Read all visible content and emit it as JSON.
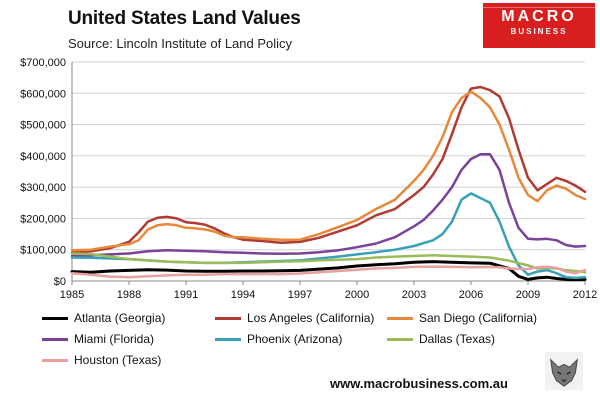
{
  "header": {
    "title": "United States Land Values",
    "subtitle": "Source: Lincoln Institute of Land Policy"
  },
  "logo": {
    "top": "MACRO",
    "bottom": "BUSINESS"
  },
  "footer": {
    "url": "www.macrobusiness.com.au"
  },
  "chart_data": {
    "type": "line",
    "title": "United States Land Values",
    "subtitle": "Source: Lincoln Institute of Land Policy",
    "xlabel": "",
    "ylabel": "",
    "xlim": [
      1985,
      2012
    ],
    "ylim": [
      0,
      700000
    ],
    "x_ticks": [
      1985,
      1988,
      1991,
      1994,
      1997,
      2000,
      2003,
      2006,
      2009,
      2012
    ],
    "y_ticks": [
      0,
      100000,
      200000,
      300000,
      400000,
      500000,
      600000,
      700000
    ],
    "y_tick_labels": [
      "$0",
      "$100,000",
      "$200,000",
      "$300,000",
      "$400,000",
      "$500,000",
      "$600,000",
      "$700,000"
    ],
    "grid": "horizontal",
    "legend_position": "bottom",
    "series": [
      {
        "name": "Atlanta (Georgia)",
        "color": "#000000",
        "width": 3,
        "points": [
          [
            1985,
            30000
          ],
          [
            1986,
            28000
          ],
          [
            1987,
            32000
          ],
          [
            1988,
            34000
          ],
          [
            1989,
            36000
          ],
          [
            1990,
            35000
          ],
          [
            1991,
            32000
          ],
          [
            1992,
            31000
          ],
          [
            1993,
            31000
          ],
          [
            1994,
            32000
          ],
          [
            1995,
            32000
          ],
          [
            1996,
            33000
          ],
          [
            1997,
            34000
          ],
          [
            1998,
            38000
          ],
          [
            1999,
            42000
          ],
          [
            2000,
            48000
          ],
          [
            2001,
            52000
          ],
          [
            2002,
            55000
          ],
          [
            2003,
            60000
          ],
          [
            2004,
            62000
          ],
          [
            2005,
            60000
          ],
          [
            2006,
            58000
          ],
          [
            2007,
            57000
          ],
          [
            2008,
            40000
          ],
          [
            2008.5,
            15000
          ],
          [
            2009,
            5000
          ],
          [
            2009.5,
            10000
          ],
          [
            2010,
            12000
          ],
          [
            2010.5,
            8000
          ],
          [
            2011,
            5000
          ],
          [
            2011.5,
            4000
          ],
          [
            2012,
            5000
          ]
        ]
      },
      {
        "name": "Los Angeles (California)",
        "color": "#b03a34",
        "width": 2.5,
        "points": [
          [
            1985,
            90000
          ],
          [
            1986,
            95000
          ],
          [
            1987,
            105000
          ],
          [
            1988,
            125000
          ],
          [
            1988.5,
            155000
          ],
          [
            1989,
            190000
          ],
          [
            1989.5,
            202000
          ],
          [
            1990,
            205000
          ],
          [
            1990.5,
            200000
          ],
          [
            1991,
            188000
          ],
          [
            1991.5,
            185000
          ],
          [
            1992,
            180000
          ],
          [
            1992.5,
            168000
          ],
          [
            1993,
            152000
          ],
          [
            1993.5,
            140000
          ],
          [
            1994,
            132000
          ],
          [
            1995,
            128000
          ],
          [
            1996,
            122000
          ],
          [
            1997,
            125000
          ],
          [
            1998,
            138000
          ],
          [
            1999,
            158000
          ],
          [
            2000,
            178000
          ],
          [
            2001,
            210000
          ],
          [
            2002,
            230000
          ],
          [
            2003,
            275000
          ],
          [
            2003.5,
            300000
          ],
          [
            2004,
            340000
          ],
          [
            2004.5,
            390000
          ],
          [
            2005,
            470000
          ],
          [
            2005.5,
            555000
          ],
          [
            2006,
            615000
          ],
          [
            2006.5,
            620000
          ],
          [
            2007,
            610000
          ],
          [
            2007.5,
            590000
          ],
          [
            2008,
            520000
          ],
          [
            2008.5,
            420000
          ],
          [
            2009,
            330000
          ],
          [
            2009.5,
            290000
          ],
          [
            2010,
            310000
          ],
          [
            2010.5,
            330000
          ],
          [
            2011,
            320000
          ],
          [
            2011.5,
            305000
          ],
          [
            2012,
            285000
          ]
        ]
      },
      {
        "name": "San Diego (California)",
        "color": "#e6893b",
        "width": 2.5,
        "points": [
          [
            1985,
            98000
          ],
          [
            1986,
            100000
          ],
          [
            1987,
            110000
          ],
          [
            1988,
            118000
          ],
          [
            1988.5,
            130000
          ],
          [
            1989,
            165000
          ],
          [
            1989.5,
            178000
          ],
          [
            1990,
            182000
          ],
          [
            1990.5,
            178000
          ],
          [
            1991,
            170000
          ],
          [
            1991.5,
            168000
          ],
          [
            1992,
            165000
          ],
          [
            1992.5,
            158000
          ],
          [
            1993,
            145000
          ],
          [
            1993.5,
            140000
          ],
          [
            1994,
            140000
          ],
          [
            1995,
            135000
          ],
          [
            1996,
            132000
          ],
          [
            1997,
            132000
          ],
          [
            1998,
            150000
          ],
          [
            1999,
            172000
          ],
          [
            2000,
            195000
          ],
          [
            2001,
            230000
          ],
          [
            2002,
            260000
          ],
          [
            2003,
            320000
          ],
          [
            2003.5,
            355000
          ],
          [
            2004,
            400000
          ],
          [
            2004.5,
            460000
          ],
          [
            2005,
            540000
          ],
          [
            2005.5,
            585000
          ],
          [
            2006,
            605000
          ],
          [
            2006.5,
            585000
          ],
          [
            2007,
            555000
          ],
          [
            2007.5,
            500000
          ],
          [
            2008,
            420000
          ],
          [
            2008.5,
            330000
          ],
          [
            2009,
            275000
          ],
          [
            2009.5,
            255000
          ],
          [
            2010,
            290000
          ],
          [
            2010.5,
            305000
          ],
          [
            2011,
            295000
          ],
          [
            2011.5,
            275000
          ],
          [
            2012,
            262000
          ]
        ]
      },
      {
        "name": "Miami (Florida)",
        "color": "#7b4397",
        "width": 2.5,
        "points": [
          [
            1985,
            80000
          ],
          [
            1986,
            82000
          ],
          [
            1987,
            85000
          ],
          [
            1988,
            88000
          ],
          [
            1989,
            95000
          ],
          [
            1990,
            98000
          ],
          [
            1991,
            97000
          ],
          [
            1992,
            95000
          ],
          [
            1993,
            92000
          ],
          [
            1994,
            90000
          ],
          [
            1995,
            88000
          ],
          [
            1996,
            87000
          ],
          [
            1997,
            88000
          ],
          [
            1998,
            92000
          ],
          [
            1999,
            98000
          ],
          [
            2000,
            108000
          ],
          [
            2001,
            120000
          ],
          [
            2002,
            140000
          ],
          [
            2003,
            175000
          ],
          [
            2003.5,
            195000
          ],
          [
            2004,
            225000
          ],
          [
            2004.5,
            260000
          ],
          [
            2005,
            300000
          ],
          [
            2005.5,
            355000
          ],
          [
            2006,
            390000
          ],
          [
            2006.5,
            405000
          ],
          [
            2007,
            405000
          ],
          [
            2007.5,
            355000
          ],
          [
            2008,
            250000
          ],
          [
            2008.5,
            170000
          ],
          [
            2009,
            135000
          ],
          [
            2009.5,
            133000
          ],
          [
            2010,
            135000
          ],
          [
            2010.5,
            130000
          ],
          [
            2011,
            115000
          ],
          [
            2011.5,
            110000
          ],
          [
            2012,
            112000
          ]
        ]
      },
      {
        "name": "Phoenix (Arizona)",
        "color": "#3aa0b7",
        "width": 2.5,
        "points": [
          [
            1985,
            75000
          ],
          [
            1986,
            74000
          ],
          [
            1987,
            72000
          ],
          [
            1988,
            70000
          ],
          [
            1989,
            66000
          ],
          [
            1990,
            62000
          ],
          [
            1991,
            60000
          ],
          [
            1992,
            58000
          ],
          [
            1993,
            58000
          ],
          [
            1994,
            60000
          ],
          [
            1995,
            62000
          ],
          [
            1996,
            64000
          ],
          [
            1997,
            66000
          ],
          [
            1998,
            72000
          ],
          [
            1999,
            78000
          ],
          [
            2000,
            85000
          ],
          [
            2001,
            92000
          ],
          [
            2002,
            100000
          ],
          [
            2003,
            112000
          ],
          [
            2004,
            130000
          ],
          [
            2004.5,
            150000
          ],
          [
            2005,
            190000
          ],
          [
            2005.5,
            260000
          ],
          [
            2006,
            280000
          ],
          [
            2006.5,
            265000
          ],
          [
            2007,
            250000
          ],
          [
            2007.5,
            190000
          ],
          [
            2008,
            110000
          ],
          [
            2008.5,
            50000
          ],
          [
            2009,
            20000
          ],
          [
            2009.5,
            30000
          ],
          [
            2010,
            35000
          ],
          [
            2010.5,
            25000
          ],
          [
            2011,
            12000
          ],
          [
            2011.5,
            10000
          ],
          [
            2012,
            12000
          ]
        ]
      },
      {
        "name": "Dallas (Texas)",
        "color": "#9bbb59",
        "width": 2.5,
        "points": [
          [
            1985,
            88000
          ],
          [
            1986,
            86000
          ],
          [
            1987,
            78000
          ],
          [
            1988,
            70000
          ],
          [
            1989,
            66000
          ],
          [
            1990,
            62000
          ],
          [
            1991,
            60000
          ],
          [
            1992,
            58000
          ],
          [
            1993,
            58000
          ],
          [
            1994,
            58000
          ],
          [
            1995,
            60000
          ],
          [
            1996,
            62000
          ],
          [
            1997,
            63000
          ],
          [
            1998,
            66000
          ],
          [
            1999,
            68000
          ],
          [
            2000,
            70000
          ],
          [
            2001,
            75000
          ],
          [
            2002,
            78000
          ],
          [
            2003,
            80000
          ],
          [
            2004,
            82000
          ],
          [
            2005,
            80000
          ],
          [
            2006,
            78000
          ],
          [
            2007,
            75000
          ],
          [
            2008,
            65000
          ],
          [
            2009,
            50000
          ],
          [
            2009.5,
            40000
          ],
          [
            2010,
            42000
          ],
          [
            2010.5,
            40000
          ],
          [
            2011,
            35000
          ],
          [
            2011.5,
            32000
          ],
          [
            2012,
            28000
          ]
        ]
      },
      {
        "name": "Houston (Texas)",
        "color": "#e8a0a0",
        "width": 2.5,
        "points": [
          [
            1985,
            25000
          ],
          [
            1986,
            20000
          ],
          [
            1987,
            14000
          ],
          [
            1988,
            12000
          ],
          [
            1989,
            15000
          ],
          [
            1990,
            18000
          ],
          [
            1991,
            20000
          ],
          [
            1992,
            20000
          ],
          [
            1993,
            22000
          ],
          [
            1994,
            22000
          ],
          [
            1995,
            22000
          ],
          [
            1996,
            22000
          ],
          [
            1997,
            24000
          ],
          [
            1998,
            28000
          ],
          [
            1999,
            32000
          ],
          [
            2000,
            36000
          ],
          [
            2001,
            40000
          ],
          [
            2002,
            42000
          ],
          [
            2003,
            45000
          ],
          [
            2004,
            46000
          ],
          [
            2005,
            45000
          ],
          [
            2006,
            44000
          ],
          [
            2007,
            45000
          ],
          [
            2007.5,
            44000
          ],
          [
            2008,
            40000
          ],
          [
            2009,
            38000
          ],
          [
            2009.5,
            44000
          ],
          [
            2010,
            45000
          ],
          [
            2010.5,
            42000
          ],
          [
            2011,
            30000
          ],
          [
            2011.5,
            25000
          ],
          [
            2012,
            35000
          ]
        ]
      }
    ]
  }
}
